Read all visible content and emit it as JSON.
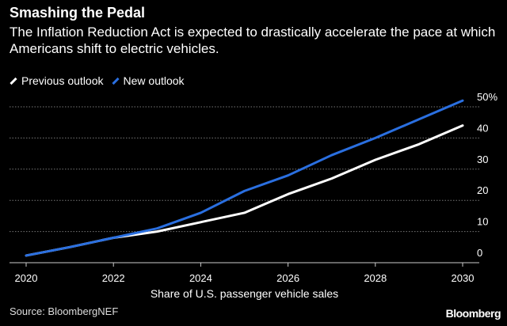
{
  "title": "Smashing the Pedal",
  "subtitle": "The Inflation Reduction Act is expected to drastically accelerate the pace at which Americans shift to electric vehicles.",
  "source": "Source: BloombergNEF",
  "brand": "Bloomberg",
  "chart_data": {
    "type": "line",
    "x": [
      2020,
      2021,
      2022,
      2023,
      2024,
      2025,
      2026,
      2027,
      2028,
      2029,
      2030
    ],
    "series": [
      {
        "name": "Previous outlook",
        "color": "#ffffff",
        "values": [
          2.3,
          5,
          8,
          10,
          13,
          16,
          22,
          27,
          33,
          38,
          44
        ]
      },
      {
        "name": "New outlook",
        "color": "#2a6fe0",
        "values": [
          2.3,
          5,
          8,
          11,
          16,
          23,
          28,
          34.5,
          40,
          46,
          52
        ]
      }
    ],
    "xlabel": "Share of U.S. passenger vehicle sales",
    "xticks": [
      "2020",
      "2022",
      "2024",
      "2026",
      "2028",
      "2030"
    ],
    "yticks": [
      "0",
      "10",
      "20",
      "30",
      "40",
      "50%"
    ],
    "ylim": [
      0,
      50
    ],
    "xlim": [
      2020,
      2030
    ],
    "grid": true,
    "legend_position": "top-left"
  }
}
